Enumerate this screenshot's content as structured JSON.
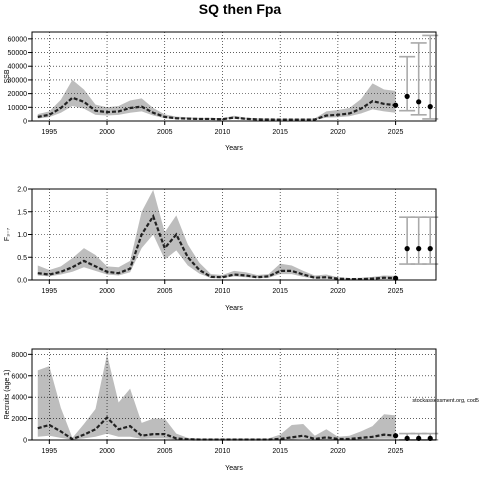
{
  "title": "SQ then Fpa",
  "watermark": "stockassessment.org, cod5",
  "chart_data": [
    {
      "type": "line",
      "ylabel": "SSB",
      "xlabel": "Years",
      "xlim": [
        1993.5,
        2028.5
      ],
      "ylim": [
        0,
        65000
      ],
      "xticks": [
        1995,
        2000,
        2005,
        2010,
        2015,
        2020,
        2025
      ],
      "yticks": [
        0,
        10000,
        20000,
        30000,
        40000,
        50000,
        60000
      ],
      "ytick_labels": [
        "0",
        "10000",
        "20000",
        "30000",
        "40000",
        "50000",
        "60000"
      ],
      "grid": true,
      "x": [
        1994,
        1995,
        1996,
        1997,
        1998,
        1999,
        2000,
        2001,
        2002,
        2003,
        2004,
        2005,
        2006,
        2007,
        2008,
        2009,
        2010,
        2011,
        2012,
        2013,
        2014,
        2015,
        2016,
        2017,
        2018,
        2019,
        2020,
        2021,
        2022,
        2023,
        2024,
        2025
      ],
      "estimate": [
        3000,
        4500,
        9500,
        17000,
        14000,
        7500,
        6500,
        7000,
        9500,
        10500,
        6000,
        3000,
        2000,
        1700,
        1500,
        1500,
        1300,
        2500,
        1600,
        1200,
        1100,
        1000,
        1000,
        1000,
        1100,
        4000,
        4500,
        5500,
        9000,
        14500,
        12500,
        11500
      ],
      "lower": [
        1800,
        2800,
        6000,
        11000,
        9000,
        4500,
        4000,
        4500,
        6000,
        7000,
        4000,
        2000,
        1300,
        1100,
        1000,
        1000,
        900,
        1700,
        1100,
        800,
        700,
        700,
        700,
        700,
        700,
        2500,
        2700,
        3500,
        5500,
        8500,
        7000,
        6000
      ],
      "upper": [
        5000,
        7000,
        15500,
        30000,
        23000,
        12000,
        10000,
        11000,
        15000,
        16500,
        9500,
        4800,
        3200,
        2700,
        2300,
        2300,
        2000,
        3800,
        2500,
        1900,
        1700,
        1600,
        1600,
        1600,
        1800,
        7000,
        8000,
        9500,
        16000,
        27500,
        23000,
        22000
      ],
      "forecast": [
        {
          "x": 2026,
          "median": 18000,
          "low": 7500,
          "high": 47000
        },
        {
          "x": 2027,
          "median": 14000,
          "low": 4500,
          "high": 57000
        },
        {
          "x": 2028,
          "median": 10500,
          "low": 1500,
          "high": 62500
        }
      ]
    },
    {
      "type": "line",
      "ylabel": "F₃₋₇",
      "xlabel": "Years",
      "xlim": [
        1993.5,
        2028.5
      ],
      "ylim": [
        0,
        2.0
      ],
      "xticks": [
        1995,
        2000,
        2005,
        2010,
        2015,
        2020,
        2025
      ],
      "yticks": [
        0,
        0.5,
        1.0,
        1.5,
        2.0
      ],
      "ytick_labels": [
        "0.0",
        "0.5",
        "1.0",
        "1.5",
        "2.0"
      ],
      "grid": true,
      "x": [
        1994,
        1995,
        1996,
        1997,
        1998,
        1999,
        2000,
        2001,
        2002,
        2003,
        2004,
        2005,
        2006,
        2007,
        2008,
        2009,
        2010,
        2011,
        2012,
        2013,
        2014,
        2015,
        2016,
        2017,
        2018,
        2019,
        2020,
        2021,
        2022,
        2023,
        2024,
        2025
      ],
      "estimate": [
        0.15,
        0.12,
        0.18,
        0.28,
        0.42,
        0.3,
        0.18,
        0.15,
        0.25,
        1.0,
        1.4,
        0.7,
        1.0,
        0.5,
        0.22,
        0.07,
        0.06,
        0.12,
        0.1,
        0.06,
        0.08,
        0.2,
        0.2,
        0.12,
        0.05,
        0.06,
        0.03,
        0.02,
        0.02,
        0.03,
        0.05,
        0.04
      ],
      "lower": [
        0.1,
        0.08,
        0.12,
        0.18,
        0.28,
        0.2,
        0.12,
        0.1,
        0.17,
        0.7,
        1.0,
        0.45,
        0.65,
        0.32,
        0.14,
        0.04,
        0.04,
        0.08,
        0.06,
        0.04,
        0.05,
        0.13,
        0.13,
        0.07,
        0.03,
        0.03,
        0.02,
        0.01,
        0.01,
        0.02,
        0.03,
        0.02
      ],
      "upper": [
        0.32,
        0.22,
        0.3,
        0.48,
        0.7,
        0.55,
        0.3,
        0.28,
        0.42,
        1.5,
        1.98,
        1.05,
        1.42,
        0.78,
        0.38,
        0.13,
        0.11,
        0.2,
        0.17,
        0.11,
        0.13,
        0.36,
        0.32,
        0.2,
        0.1,
        0.12,
        0.06,
        0.04,
        0.05,
        0.07,
        0.1,
        0.09
      ],
      "forecast": [
        {
          "x": 2026,
          "median": 0.69,
          "low": 0.35,
          "high": 1.38
        },
        {
          "x": 2027,
          "median": 0.69,
          "low": 0.35,
          "high": 1.38
        },
        {
          "x": 2028,
          "median": 0.69,
          "low": 0.35,
          "high": 1.38
        }
      ]
    },
    {
      "type": "line",
      "ylabel": "Recruits (age 1)",
      "xlabel": "Years",
      "xlim": [
        1993.5,
        2028.5
      ],
      "ylim": [
        0,
        8500
      ],
      "xticks": [
        1995,
        2000,
        2005,
        2010,
        2015,
        2020,
        2025
      ],
      "yticks": [
        0,
        2000,
        4000,
        6000,
        8000
      ],
      "ytick_labels": [
        "0",
        "2000",
        "4000",
        "6000",
        "8000"
      ],
      "grid": true,
      "x": [
        1994,
        1995,
        1996,
        1997,
        1998,
        1999,
        2000,
        2001,
        2002,
        2003,
        2004,
        2005,
        2006,
        2007,
        2008,
        2009,
        2010,
        2011,
        2012,
        2013,
        2014,
        2015,
        2016,
        2017,
        2018,
        2019,
        2020,
        2021,
        2022,
        2023,
        2024,
        2025
      ],
      "estimate": [
        1100,
        1400,
        800,
        80,
        500,
        1000,
        2100,
        1000,
        1300,
        400,
        550,
        550,
        150,
        60,
        40,
        40,
        40,
        40,
        40,
        40,
        40,
        100,
        250,
        400,
        100,
        250,
        100,
        100,
        200,
        300,
        500,
        400
      ],
      "lower": [
        300,
        400,
        200,
        20,
        150,
        300,
        600,
        300,
        300,
        100,
        150,
        150,
        40,
        15,
        10,
        10,
        10,
        10,
        10,
        10,
        10,
        25,
        50,
        100,
        25,
        60,
        25,
        25,
        50,
        80,
        120,
        100
      ],
      "upper": [
        6500,
        6900,
        3000,
        200,
        1500,
        2900,
        8000,
        3500,
        4800,
        1600,
        2000,
        2000,
        600,
        200,
        150,
        150,
        150,
        150,
        150,
        150,
        150,
        500,
        1400,
        1500,
        400,
        1000,
        300,
        400,
        800,
        1300,
        2400,
        2300
      ],
      "forecast": [
        {
          "x": 2026,
          "median": 150,
          "low": 20,
          "high": 600
        },
        {
          "x": 2027,
          "median": 150,
          "low": 20,
          "high": 600
        },
        {
          "x": 2028,
          "median": 150,
          "low": 20,
          "high": 600
        }
      ]
    }
  ]
}
